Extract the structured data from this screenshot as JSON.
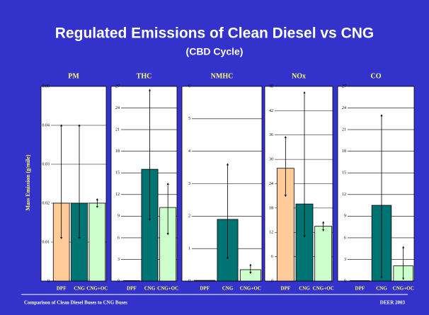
{
  "slide": {
    "title": "Regulated Emissions of Clean Diesel vs CNG",
    "subtitle": "(CBD Cycle)",
    "footer_left": "Comparison of Clean Diesel Buses to CNG Buses",
    "footer_right": "DEER 2003",
    "ylabel": "Mass Emission (g/mile)"
  },
  "chart_data": [
    {
      "type": "bar",
      "title": "PM",
      "categories": [
        "DPF",
        "CNG",
        "CNG+OC"
      ],
      "colors": [
        "#ffcc99",
        "#007373",
        "#ccffcc"
      ],
      "values": [
        0.02,
        0.02,
        0.02
      ],
      "range_high": [
        0.04,
        0.04,
        0.021
      ],
      "range_low": [
        0.011,
        0.011,
        0.019
      ],
      "ylim": [
        0,
        0.05
      ],
      "yticks": [
        0,
        0.01,
        0.02,
        0.03,
        0.04,
        0.05
      ],
      "grid": true
    },
    {
      "type": "bar",
      "title": "THC",
      "categories": [
        "DPF",
        "CNG",
        "CNG+OC"
      ],
      "colors": [
        "#ffcc99",
        "#007373",
        "#ccffcc"
      ],
      "values": [
        0.05,
        15.5,
        10.2
      ],
      "range_high": [
        null,
        26.5,
        13.5
      ],
      "range_low": [
        null,
        8.5,
        6.5
      ],
      "ylim": [
        0,
        27
      ],
      "yticks": [
        0,
        3,
        6,
        9,
        12,
        15,
        18,
        21,
        24,
        27
      ],
      "grid": true
    },
    {
      "type": "bar",
      "title": "NMHC",
      "categories": [
        "DPF",
        "CNG",
        "CNG+OC"
      ],
      "colors": [
        "#ffcc99",
        "#007373",
        "#ccffcc"
      ],
      "values": [
        0.02,
        1.9,
        0.35
      ],
      "range_high": [
        null,
        3.6,
        0.5
      ],
      "range_low": [
        null,
        0.7,
        0.25
      ],
      "ylim": [
        0,
        6
      ],
      "yticks": [
        0,
        1,
        2,
        3,
        4,
        5,
        6
      ],
      "grid": true
    },
    {
      "type": "bar",
      "title": "NOx",
      "categories": [
        "DPF",
        "CNG",
        "CNG+OC"
      ],
      "colors": [
        "#ffcc99",
        "#007373",
        "#ccffcc"
      ],
      "values": [
        27.8,
        19,
        13.5
      ],
      "range_high": [
        35.5,
        46.5,
        14.5
      ],
      "range_low": [
        21,
        11,
        12.5
      ],
      "ylim": [
        0,
        48
      ],
      "yticks": [
        0,
        6,
        12,
        18,
        24,
        30,
        36,
        42,
        48
      ],
      "grid": true
    },
    {
      "type": "bar",
      "title": "CO",
      "categories": [
        "DPF",
        "CNG",
        "CNG+OC"
      ],
      "colors": [
        "#ffcc99",
        "#007373",
        "#ccffcc"
      ],
      "values": [
        0.05,
        10.5,
        2.1
      ],
      "range_high": [
        null,
        23,
        4.7
      ],
      "range_low": [
        null,
        0.5,
        0.3
      ],
      "ylim": [
        0,
        27
      ],
      "yticks": [
        0,
        3,
        6,
        9,
        12,
        15,
        18,
        21,
        24,
        27
      ],
      "grid": true
    }
  ]
}
